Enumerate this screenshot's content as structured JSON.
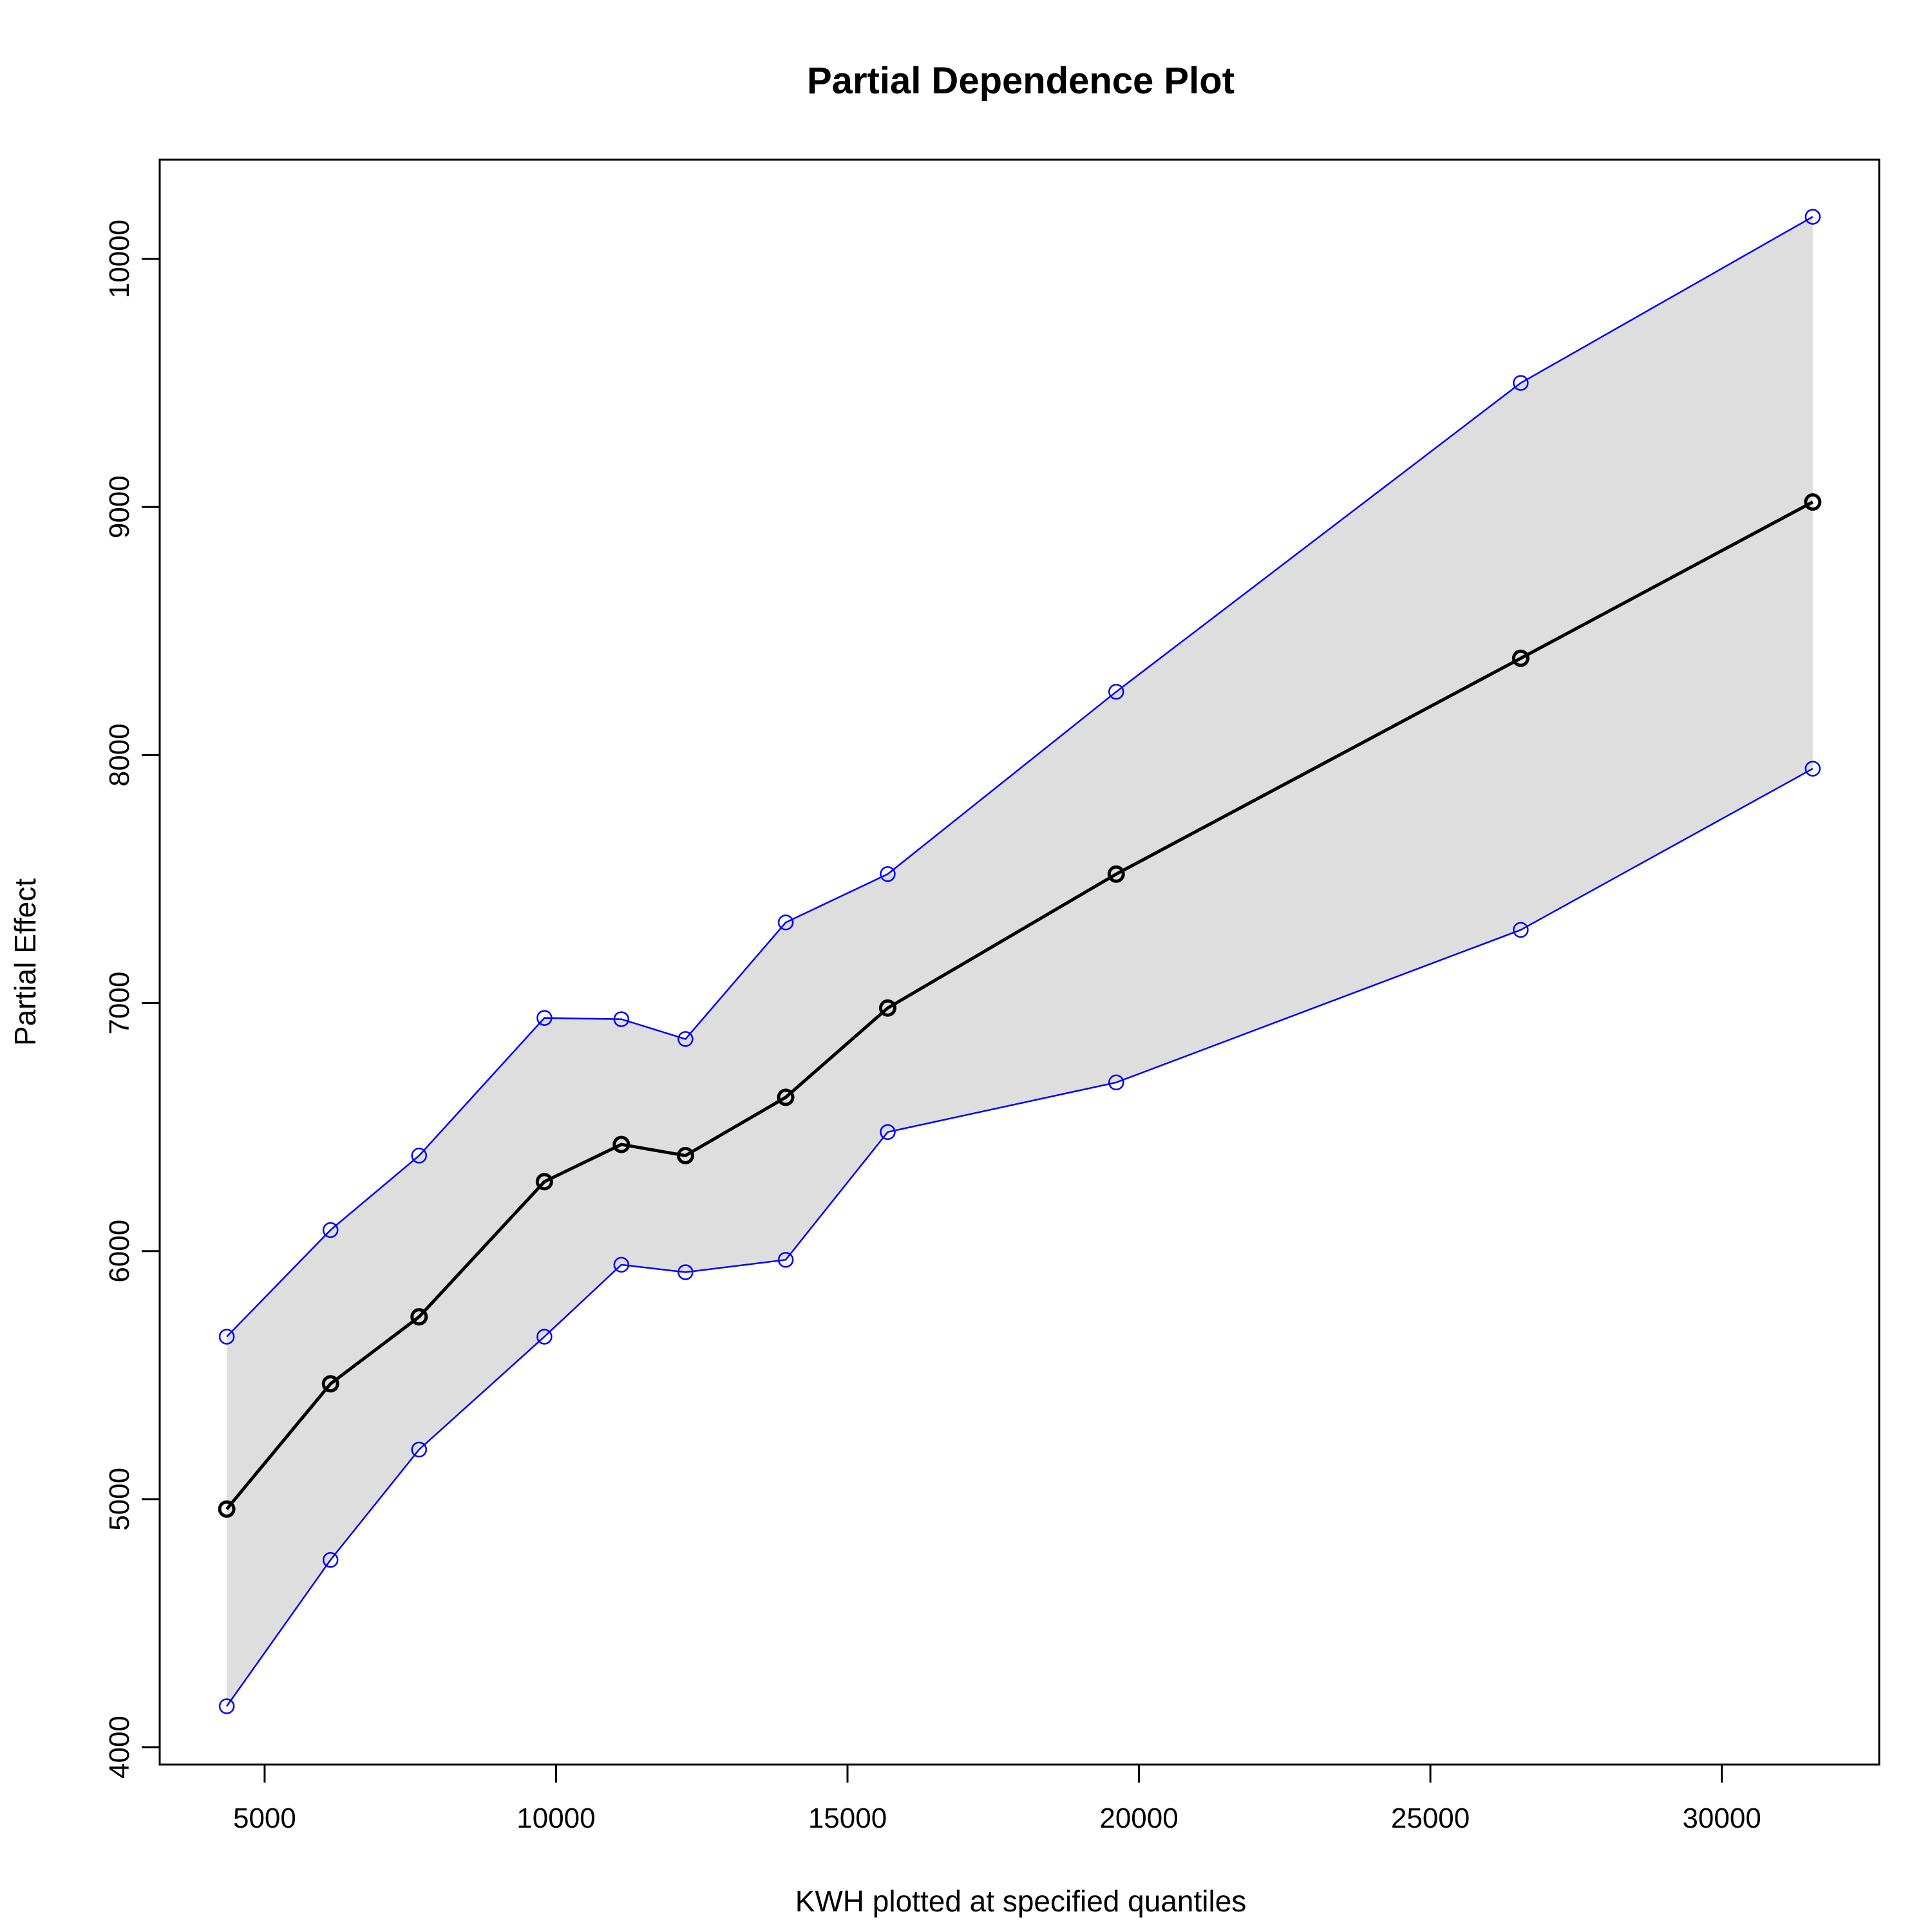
{
  "chart_data": {
    "type": "line",
    "title": "Partial Dependence Plot",
    "xlabel": "KWH plotted at specified quantiles",
    "ylabel": "Partial Effect",
    "xlim": [
      3200,
      32700
    ],
    "ylim": [
      3930,
      10400
    ],
    "x_ticks": [
      5000,
      10000,
      15000,
      20000,
      25000,
      30000
    ],
    "y_ticks": [
      4000,
      5000,
      6000,
      7000,
      8000,
      9000,
      10000
    ],
    "grid": false,
    "x": [
      4350,
      6130,
      7650,
      9800,
      11120,
      12220,
      13940,
      15690,
      19610,
      26550,
      31560
    ],
    "series": [
      {
        "role": "estimate",
        "color": "#000000",
        "values": [
          4960,
          5465,
          5735,
          6280,
          6430,
          6385,
          6620,
          6980,
          7520,
          8390,
          9020
        ]
      },
      {
        "role": "upper",
        "color": "#0000ff",
        "values": [
          5655,
          6085,
          6385,
          6940,
          6935,
          6855,
          7325,
          7520,
          8255,
          9500,
          10170
        ]
      },
      {
        "role": "lower",
        "color": "#0000ff",
        "values": [
          4165,
          4755,
          5200,
          5655,
          5945,
          5915,
          5965,
          6480,
          6680,
          7295,
          7945
        ]
      }
    ],
    "band_color": "#dedede"
  }
}
